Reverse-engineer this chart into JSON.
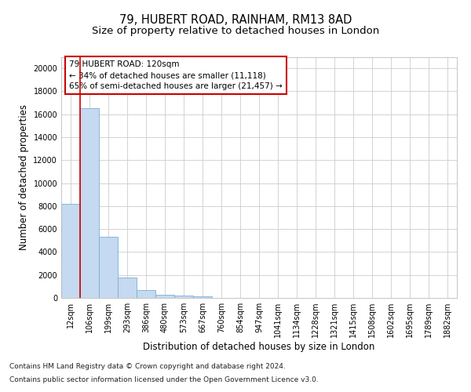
{
  "title1": "79, HUBERT ROAD, RAINHAM, RM13 8AD",
  "title2": "Size of property relative to detached houses in London",
  "xlabel": "Distribution of detached houses by size in London",
  "ylabel": "Number of detached properties",
  "bar_color": "#c5d9f0",
  "bar_edge_color": "#7bafd4",
  "vline_color": "#cc0000",
  "vline_x": 0.5,
  "annotation_line1": "79 HUBERT ROAD: 120sqm",
  "annotation_line2": "← 34% of detached houses are smaller (11,118)",
  "annotation_line3": "65% of semi-detached houses are larger (21,457) →",
  "annotation_box_color": "#ffffff",
  "annotation_box_edge": "#cc0000",
  "footnote1": "Contains HM Land Registry data © Crown copyright and database right 2024.",
  "footnote2": "Contains public sector information licensed under the Open Government Licence v3.0.",
  "categories": [
    "12sqm",
    "106sqm",
    "199sqm",
    "293sqm",
    "386sqm",
    "480sqm",
    "573sqm",
    "667sqm",
    "760sqm",
    "854sqm",
    "947sqm",
    "1041sqm",
    "1134sqm",
    "1228sqm",
    "1321sqm",
    "1415sqm",
    "1508sqm",
    "1602sqm",
    "1695sqm",
    "1789sqm",
    "1882sqm"
  ],
  "values": [
    8200,
    16500,
    5300,
    1750,
    700,
    300,
    200,
    150,
    0,
    0,
    0,
    0,
    0,
    0,
    0,
    0,
    0,
    0,
    0,
    0,
    0
  ],
  "ylim": [
    0,
    21000
  ],
  "yticks": [
    0,
    2000,
    4000,
    6000,
    8000,
    10000,
    12000,
    14000,
    16000,
    18000,
    20000
  ],
  "background_color": "#ffffff",
  "grid_color": "#cccccc",
  "title1_fontsize": 10.5,
  "title2_fontsize": 9.5,
  "axis_label_fontsize": 8.5,
  "tick_fontsize": 7,
  "footnote_fontsize": 6.5,
  "annotation_fontsize": 7.5
}
